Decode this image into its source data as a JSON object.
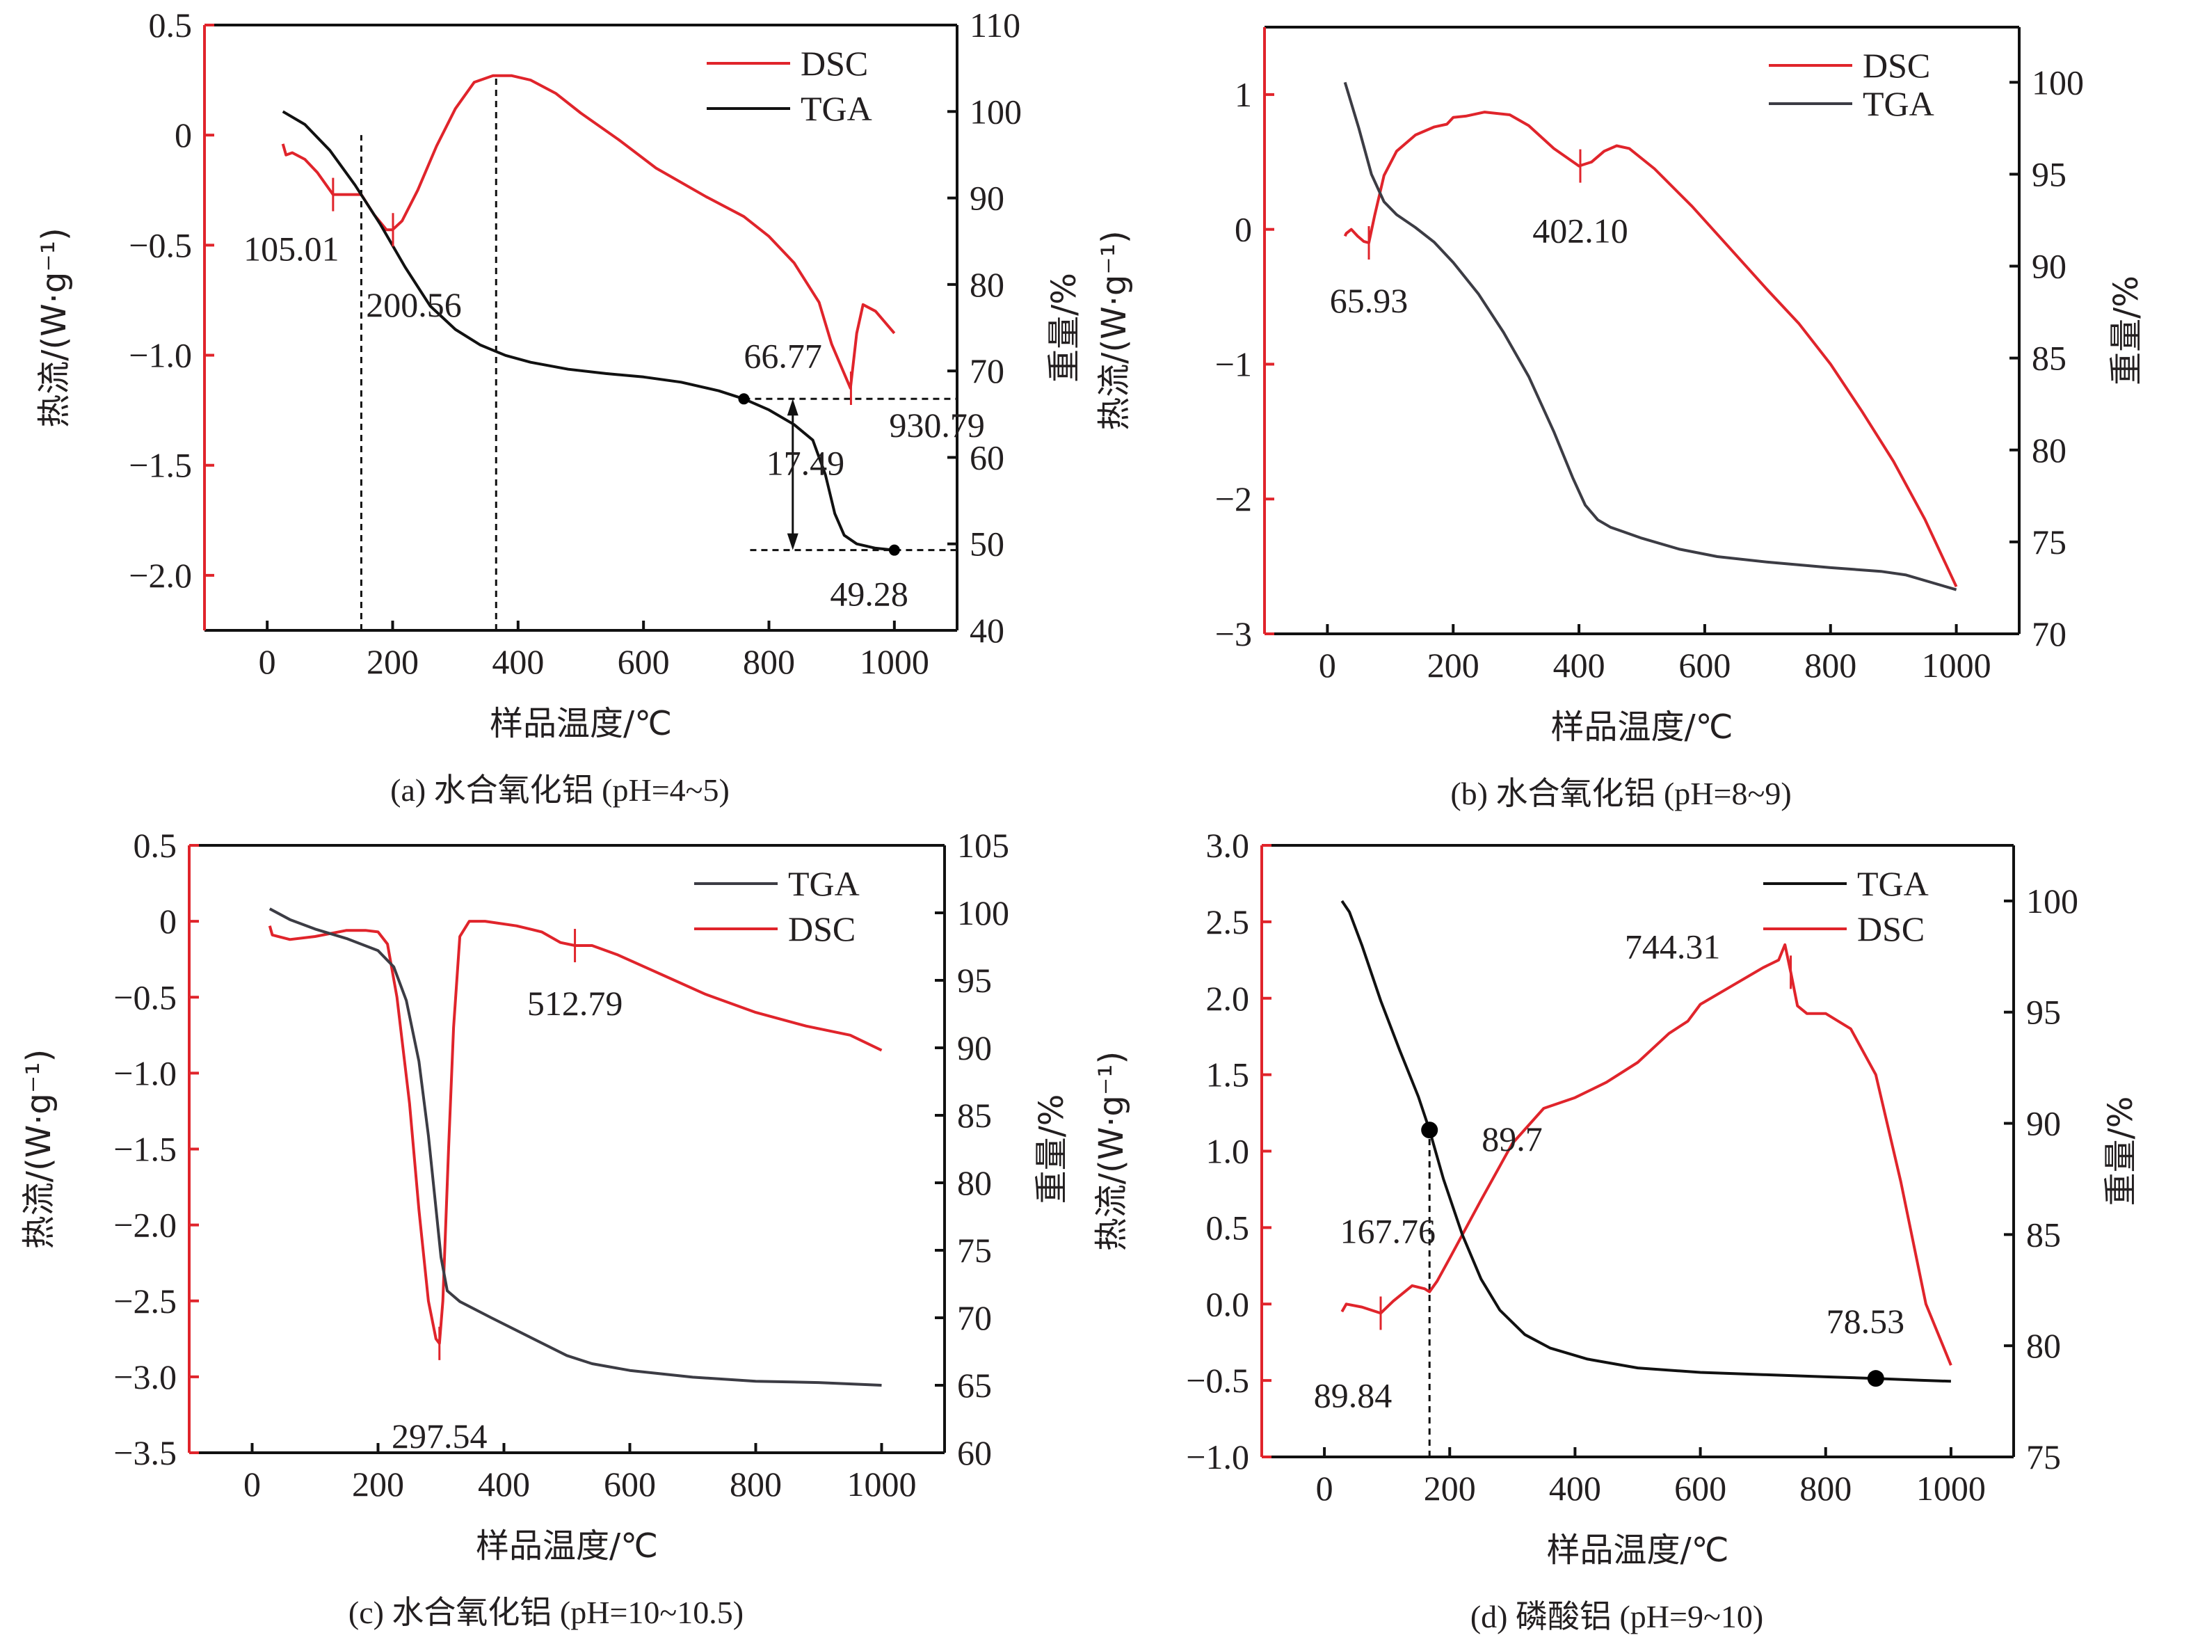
{
  "colors": {
    "dsc": "#e0242b",
    "tga_black": "#111111",
    "tga_gray": "#3c3c44",
    "axis_left": "#e0242b",
    "axis": "#111111"
  },
  "chart_data": [
    {
      "id": "a",
      "type": "line",
      "caption": "(a) 水合氧化铝 (pH=4~5)",
      "xlabel": "样品温度/℃",
      "ylabel_left": "热流/(W·g⁻¹)",
      "ylabel_right": "重量/%",
      "xlim": [
        -100,
        1100
      ],
      "ylim_left": [
        -2.25,
        0.5
      ],
      "ylim_right": [
        40,
        110
      ],
      "xticks": [
        0,
        200,
        400,
        600,
        800,
        1000
      ],
      "yticks_left": [
        {
          "v": 0.5,
          "t": "0.5"
        },
        {
          "v": 0,
          "t": "0"
        },
        {
          "v": -0.5,
          "t": "−0.5"
        },
        {
          "v": -1.0,
          "t": "−1.0"
        },
        {
          "v": -1.5,
          "t": "−1.5"
        },
        {
          "v": -2.0,
          "t": "−2.0"
        }
      ],
      "yticks_right": [
        {
          "v": 110,
          "t": "110"
        },
        {
          "v": 100,
          "t": "100"
        },
        {
          "v": 90,
          "t": "90"
        },
        {
          "v": 80,
          "t": "80"
        },
        {
          "v": 70,
          "t": "70"
        },
        {
          "v": 60,
          "t": "60"
        },
        {
          "v": 50,
          "t": "50"
        },
        {
          "v": 40,
          "t": "40"
        }
      ],
      "legend": [
        {
          "name": "DSC",
          "series": "DSC"
        },
        {
          "name": "TGA",
          "series": "TGA"
        }
      ],
      "legend_position": "top-right",
      "series": [
        {
          "name": "DSC",
          "axis": "left",
          "color_key": "dsc",
          "x": [
            25,
            30,
            40,
            60,
            80,
            105,
            130,
            150,
            170,
            190,
            200,
            215,
            240,
            270,
            300,
            330,
            360,
            390,
            420,
            460,
            500,
            560,
            620,
            700,
            760,
            800,
            840,
            880,
            900,
            915,
            930,
            940,
            950,
            970,
            1000
          ],
          "y": [
            -0.04,
            -0.09,
            -0.08,
            -0.11,
            -0.17,
            -0.27,
            -0.27,
            -0.27,
            -0.36,
            -0.43,
            -0.43,
            -0.39,
            -0.25,
            -0.05,
            0.12,
            0.24,
            0.27,
            0.27,
            0.25,
            0.19,
            0.1,
            -0.02,
            -0.15,
            -0.28,
            -0.37,
            -0.46,
            -0.58,
            -0.76,
            -0.95,
            -1.05,
            -1.15,
            -0.9,
            -0.77,
            -0.8,
            -0.9
          ]
        },
        {
          "name": "TGA",
          "axis": "right",
          "color_key": "tga_black",
          "x": [
            25,
            60,
            100,
            140,
            180,
            220,
            260,
            300,
            340,
            380,
            420,
            480,
            540,
            600,
            660,
            720,
            760,
            800,
            840,
            870,
            890,
            905,
            920,
            940,
            970,
            1000
          ],
          "y": [
            100,
            98.5,
            95.5,
            91.5,
            87,
            82,
            77.5,
            74.8,
            73,
            71.8,
            71,
            70.2,
            69.7,
            69.3,
            68.7,
            67.7,
            66.77,
            65.5,
            63.8,
            62,
            58,
            53.5,
            51,
            50,
            49.5,
            49.28
          ]
        }
      ],
      "markers": [
        {
          "series": "TGA",
          "x": 760,
          "y": 66.77
        },
        {
          "series": "TGA",
          "x": 1000,
          "y": 49.28
        }
      ],
      "peak_ticks": [
        {
          "x": 105.01,
          "y": -0.27
        },
        {
          "x": 200.56,
          "y": -0.43
        },
        {
          "x": 930.79,
          "y": -1.15
        }
      ],
      "vlines": [
        150,
        365
      ],
      "hlines_right": [
        66.77,
        49.28
      ],
      "annotations": [
        {
          "text": "105.01",
          "x": 105.01,
          "y": -0.27
        },
        {
          "text": "200.56",
          "x": 200.56,
          "y": -0.43
        },
        {
          "text": "930.79",
          "x": 930.79,
          "y": -1.15
        },
        {
          "text": "66.77",
          "x": 760,
          "y": 66.77
        },
        {
          "text": "49.28",
          "x": 1000,
          "y": 49.28
        },
        {
          "text": "17.49",
          "x": 840,
          "y": 58
        }
      ]
    },
    {
      "id": "b",
      "type": "line",
      "caption": "(b) 水合氧化铝 (pH=8~9)",
      "xlabel": "样品温度/℃",
      "ylabel_left": "热流/(W·g⁻¹)",
      "ylabel_right": "重量/%",
      "xlim": [
        -100,
        1100
      ],
      "ylim_left": [
        -3,
        1.5
      ],
      "ylim_right": [
        70,
        103
      ],
      "xticks": [
        0,
        200,
        400,
        600,
        800,
        1000
      ],
      "yticks_left": [
        {
          "v": 1,
          "t": "1"
        },
        {
          "v": 0,
          "t": "0"
        },
        {
          "v": -1,
          "t": "−1"
        },
        {
          "v": -2,
          "t": "−2"
        },
        {
          "v": -3,
          "t": "−3"
        }
      ],
      "yticks_right": [
        {
          "v": 100,
          "t": "100"
        },
        {
          "v": 95,
          "t": "95"
        },
        {
          "v": 90,
          "t": "90"
        },
        {
          "v": 85,
          "t": "85"
        },
        {
          "v": 80,
          "t": "80"
        },
        {
          "v": 75,
          "t": "75"
        },
        {
          "v": 70,
          "t": "70"
        }
      ],
      "legend": [
        {
          "name": "DSC",
          "series": "DSC"
        },
        {
          "name": "TGA",
          "series": "TGA"
        }
      ],
      "legend_position": "top-right",
      "series": [
        {
          "name": "DSC",
          "axis": "left",
          "color_key": "dsc",
          "x": [
            28,
            30,
            38,
            48,
            58,
            65.93,
            75,
            90,
            110,
            140,
            170,
            190,
            200,
            220,
            250,
            290,
            320,
            360,
            400,
            420,
            440,
            460,
            480,
            520,
            580,
            640,
            700,
            750,
            800,
            850,
            900,
            950,
            1000
          ],
          "y": [
            -0.05,
            -0.03,
            0.0,
            -0.05,
            -0.09,
            -0.1,
            0.1,
            0.4,
            0.58,
            0.7,
            0.76,
            0.78,
            0.83,
            0.84,
            0.87,
            0.85,
            0.77,
            0.6,
            0.47,
            0.5,
            0.58,
            0.62,
            0.6,
            0.45,
            0.17,
            -0.14,
            -0.45,
            -0.7,
            -1.0,
            -1.35,
            -1.72,
            -2.15,
            -2.65
          ]
        },
        {
          "name": "TGA",
          "axis": "right",
          "color_key": "tga_gray",
          "x": [
            28,
            50,
            70,
            90,
            110,
            140,
            170,
            200,
            240,
            280,
            320,
            360,
            390,
            410,
            430,
            450,
            500,
            560,
            620,
            700,
            800,
            880,
            920,
            960,
            1000
          ],
          "y": [
            100,
            97.5,
            95,
            93.5,
            92.8,
            92.1,
            91.3,
            90.2,
            88.5,
            86.4,
            84,
            81,
            78.5,
            77,
            76.2,
            75.8,
            75.2,
            74.6,
            74.2,
            73.9,
            73.6,
            73.4,
            73.2,
            72.8,
            72.4
          ]
        }
      ],
      "markers": [],
      "peak_ticks": [
        {
          "x": 65.93,
          "y": -0.1
        },
        {
          "x": 402.1,
          "y": 0.47
        }
      ],
      "vlines": [],
      "hlines_right": [],
      "annotations": [
        {
          "text": "65.93",
          "x": 65.93,
          "y": -0.1
        },
        {
          "text": "402.10",
          "x": 402.1,
          "y": 0.47
        }
      ]
    },
    {
      "id": "c",
      "type": "line",
      "caption": "(c) 水合氧化铝 (pH=10~10.5)",
      "xlabel": "样品温度/℃",
      "ylabel_left": "热流/(W·g⁻¹)",
      "ylabel_right": "重量/%",
      "xlim": [
        -100,
        1100
      ],
      "ylim_left": [
        -3.5,
        0.5
      ],
      "ylim_right": [
        60,
        105
      ],
      "xticks": [
        0,
        200,
        400,
        600,
        800,
        1000
      ],
      "yticks_left": [
        {
          "v": 0.5,
          "t": "0.5"
        },
        {
          "v": 0,
          "t": "0"
        },
        {
          "v": -0.5,
          "t": "−0.5"
        },
        {
          "v": -1.0,
          "t": "−1.0"
        },
        {
          "v": -1.5,
          "t": "−1.5"
        },
        {
          "v": -2.0,
          "t": "−2.0"
        },
        {
          "v": -2.5,
          "t": "−2.5"
        },
        {
          "v": -3.0,
          "t": "−3.0"
        },
        {
          "v": -3.5,
          "t": "−3.5"
        }
      ],
      "yticks_right": [
        {
          "v": 105,
          "t": "105"
        },
        {
          "v": 100,
          "t": "100"
        },
        {
          "v": 95,
          "t": "95"
        },
        {
          "v": 90,
          "t": "90"
        },
        {
          "v": 85,
          "t": "85"
        },
        {
          "v": 80,
          "t": "80"
        },
        {
          "v": 75,
          "t": "75"
        },
        {
          "v": 70,
          "t": "70"
        },
        {
          "v": 65,
          "t": "65"
        },
        {
          "v": 60,
          "t": "60"
        }
      ],
      "legend": [
        {
          "name": "TGA",
          "series": "TGA"
        },
        {
          "name": "DSC",
          "series": "DSC"
        }
      ],
      "legend_position": "top-right",
      "series": [
        {
          "name": "DSC",
          "axis": "left",
          "color_key": "dsc",
          "x": [
            28,
            32,
            60,
            100,
            150,
            180,
            200,
            215,
            230,
            250,
            265,
            280,
            292,
            297.54,
            303,
            312,
            320,
            330,
            345,
            370,
            420,
            460,
            490,
            512.79,
            540,
            580,
            650,
            720,
            800,
            880,
            950,
            1000
          ],
          "y": [
            -0.03,
            -0.09,
            -0.12,
            -0.1,
            -0.06,
            -0.06,
            -0.07,
            -0.15,
            -0.5,
            -1.2,
            -1.9,
            -2.5,
            -2.75,
            -2.78,
            -2.5,
            -1.5,
            -0.7,
            -0.1,
            0.0,
            0.0,
            -0.03,
            -0.07,
            -0.14,
            -0.16,
            -0.16,
            -0.22,
            -0.35,
            -0.48,
            -0.6,
            -0.69,
            -0.75,
            -0.85
          ]
        },
        {
          "name": "TGA",
          "axis": "right",
          "color_key": "tga_gray",
          "x": [
            28,
            60,
            100,
            150,
            200,
            225,
            245,
            265,
            280,
            290,
            300,
            310,
            315,
            330,
            380,
            440,
            500,
            540,
            600,
            700,
            800,
            900,
            1000
          ],
          "y": [
            100.3,
            99.5,
            98.8,
            98.1,
            97.2,
            96,
            93.5,
            89,
            83.5,
            79,
            74.5,
            72,
            71.8,
            71.2,
            70,
            68.6,
            67.2,
            66.6,
            66.1,
            65.6,
            65.3,
            65.2,
            65.0
          ]
        }
      ],
      "markers": [],
      "peak_ticks": [
        {
          "x": 297.54,
          "y": -2.78
        },
        {
          "x": 512.79,
          "y": -0.16
        }
      ],
      "vlines": [],
      "hlines_right": [],
      "annotations": [
        {
          "text": "297.54",
          "x": 297.54,
          "y": -2.78
        },
        {
          "text": "512.79",
          "x": 512.79,
          "y": -0.16
        }
      ]
    },
    {
      "id": "d",
      "type": "line",
      "caption": "(d) 磷酸铝 (pH=9~10)",
      "xlabel": "样品温度/℃",
      "ylabel_left": "热流/(W·g⁻¹)",
      "ylabel_right": "重量/%",
      "xlim": [
        -100,
        1100
      ],
      "ylim_left": [
        -1.0,
        3.0
      ],
      "ylim_right": [
        75,
        102.5
      ],
      "xticks": [
        0,
        200,
        400,
        600,
        800,
        1000
      ],
      "yticks_left": [
        {
          "v": 3.0,
          "t": "3.0"
        },
        {
          "v": 2.5,
          "t": "2.5"
        },
        {
          "v": 2.0,
          "t": "2.0"
        },
        {
          "v": 1.5,
          "t": "1.5"
        },
        {
          "v": 1.0,
          "t": "1.0"
        },
        {
          "v": 0.5,
          "t": "0.5"
        },
        {
          "v": 0.0,
          "t": "0.0"
        },
        {
          "v": -0.5,
          "t": "−0.5"
        },
        {
          "v": -1.0,
          "t": "−1.0"
        }
      ],
      "yticks_right": [
        {
          "v": 100,
          "t": "100"
        },
        {
          "v": 95,
          "t": "95"
        },
        {
          "v": 90,
          "t": "90"
        },
        {
          "v": 85,
          "t": "85"
        },
        {
          "v": 80,
          "t": "80"
        },
        {
          "v": 75,
          "t": "75"
        }
      ],
      "legend": [
        {
          "name": "TGA",
          "series": "TGA"
        },
        {
          "name": "DSC",
          "series": "DSC"
        }
      ],
      "legend_position": "top-right",
      "series": [
        {
          "name": "DSC",
          "axis": "left",
          "color_key": "dsc",
          "x": [
            28,
            35,
            60,
            89.84,
            110,
            140,
            160,
            167.76,
            180,
            200,
            250,
            300,
            350,
            400,
            450,
            500,
            550,
            580,
            600,
            650,
            700,
            725,
            735,
            744.31,
            755,
            770,
            800,
            840,
            880,
            920,
            960,
            1000
          ],
          "y": [
            -0.05,
            0.0,
            -0.02,
            -0.06,
            0.02,
            0.12,
            0.1,
            0.08,
            0.15,
            0.3,
            0.68,
            1.05,
            1.28,
            1.35,
            1.45,
            1.58,
            1.77,
            1.85,
            1.96,
            2.08,
            2.2,
            2.25,
            2.35,
            2.17,
            1.95,
            1.9,
            1.9,
            1.8,
            1.5,
            0.8,
            0.0,
            -0.4
          ]
        },
        {
          "name": "TGA",
          "axis": "right",
          "color_key": "tga_black",
          "x": [
            28,
            40,
            60,
            90,
            120,
            150,
            167.76,
            190,
            220,
            250,
            280,
            320,
            360,
            420,
            500,
            600,
            700,
            800,
            880,
            950,
            1000
          ],
          "y": [
            100,
            99.5,
            98,
            95.5,
            93.3,
            91.2,
            89.7,
            87.5,
            85,
            83,
            81.6,
            80.5,
            79.9,
            79.4,
            79.0,
            78.8,
            78.7,
            78.6,
            78.53,
            78.45,
            78.4
          ]
        }
      ],
      "markers": [
        {
          "series": "TGA",
          "x": 167.76,
          "y": 89.7
        },
        {
          "series": "TGA",
          "x": 880,
          "y": 78.53
        }
      ],
      "peak_ticks": [
        {
          "x": 89.84,
          "y": -0.06
        },
        {
          "x": 744.31,
          "y": 2.17
        }
      ],
      "vlines": [
        167.76
      ],
      "hlines_right": [],
      "annotations": [
        {
          "text": "89.84",
          "x": 89.84,
          "y": -0.06
        },
        {
          "text": "167.76",
          "x": 167.76,
          "y": 0.4
        },
        {
          "text": "89.7",
          "x": 167.76,
          "y": 89.7
        },
        {
          "text": "78.53",
          "x": 880,
          "y": 78.53
        },
        {
          "text": "744.31",
          "x": 744.31,
          "y": 2.17
        }
      ]
    }
  ]
}
